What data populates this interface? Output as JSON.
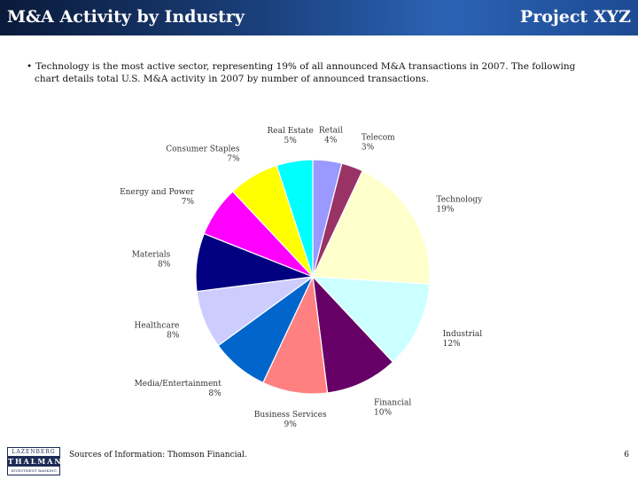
{
  "header": {
    "title": "M&A Activity by Industry",
    "project": "Project XYZ"
  },
  "bullet": {
    "marker": "•",
    "line1": "Technology is the most active sector, representing 19% of all announced M&A transactions in 2007.  The following",
    "line2": "chart details total U.S. M&A activity in 2007 by number of announced transactions."
  },
  "chart_data": {
    "type": "pie",
    "title": "",
    "slices": [
      {
        "label": "Retail",
        "pct_label": "4%",
        "value": 4,
        "color": "#9999ff"
      },
      {
        "label": "Telecom",
        "pct_label": "3%",
        "value": 3,
        "color": "#993366"
      },
      {
        "label": "Technology",
        "pct_label": "19%",
        "value": 19,
        "color": "#ffffcc"
      },
      {
        "label": "Industrial",
        "pct_label": "12%",
        "value": 12,
        "color": "#ccffff"
      },
      {
        "label": "Financial",
        "pct_label": "10%",
        "value": 10,
        "color": "#660066"
      },
      {
        "label": "Business Services",
        "pct_label": "9%",
        "value": 9,
        "color": "#ff8080"
      },
      {
        "label": "Media/Entertainment",
        "pct_label": "8%",
        "value": 8,
        "color": "#0066cc"
      },
      {
        "label": "Healthcare",
        "pct_label": "8%",
        "value": 8,
        "color": "#ccccff"
      },
      {
        "label": "Materials",
        "pct_label": "8%",
        "value": 8,
        "color": "#000080"
      },
      {
        "label": "Energy and Power",
        "pct_label": "7%",
        "value": 7,
        "color": "#ff00ff"
      },
      {
        "label": "Consumer Staples",
        "pct_label": "7%",
        "value": 7,
        "color": "#ffff00"
      },
      {
        "label": "Real Estate",
        "pct_label": "5%",
        "value": 5,
        "color": "#00ffff"
      }
    ]
  },
  "footer": {
    "logo_top": "LAZENBERG",
    "logo_mid": "THALMANN",
    "logo_bottom": "INVESTMENT BANKING",
    "source": "Sources of Information:  Thomson Financial.",
    "page": "6"
  }
}
